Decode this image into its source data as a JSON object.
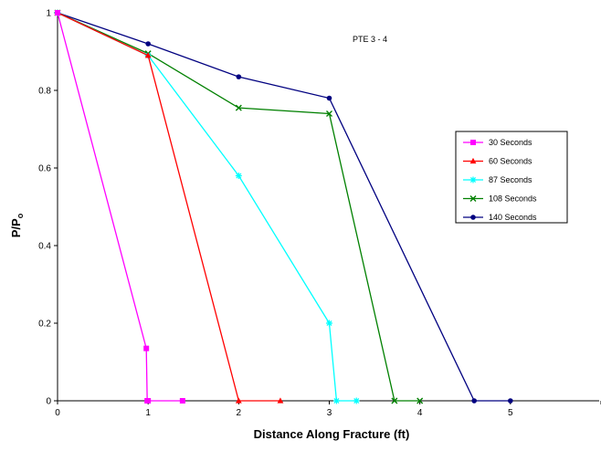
{
  "chart_data": {
    "type": "line",
    "annotation": "PTE 3 - 4",
    "xlabel": "Distance Along Fracture (ft)",
    "ylabel": "P/P",
    "ylabel_subscript": "o",
    "xlim": [
      0,
      6
    ],
    "ylim": [
      0,
      1
    ],
    "x_ticks": [
      0,
      1,
      2,
      3,
      4,
      5
    ],
    "y_ticks": [
      0,
      0.2,
      0.4,
      0.6,
      0.8,
      1
    ],
    "x_tick_labels": [
      "0",
      "1",
      "2",
      "3",
      "4",
      "5"
    ],
    "y_tick_labels": [
      "0",
      "0.2",
      "0.4",
      "0.6",
      "0.8",
      "1"
    ],
    "grid": false,
    "legend_position": "right",
    "series": [
      {
        "name": "30 Seconds",
        "color": "#ff00ff",
        "marker": "square",
        "x": [
          0,
          0.98,
          0.99,
          1.0,
          1.38
        ],
        "y": [
          1,
          0.135,
          0.0,
          0.0,
          0.0
        ]
      },
      {
        "name": "60 Seconds",
        "color": "#ff0000",
        "marker": "triangle",
        "x": [
          0,
          1.0,
          2.0,
          2.46
        ],
        "y": [
          1,
          0.89,
          0.0,
          0.0
        ]
      },
      {
        "name": "87 Seconds",
        "color": "#00ffff",
        "marker": "star",
        "x": [
          0,
          1.0,
          2.0,
          3.0,
          3.08,
          3.3
        ],
        "y": [
          1,
          0.89,
          0.58,
          0.2,
          0.0,
          0.0
        ]
      },
      {
        "name": "108 Seconds",
        "color": "#008000",
        "marker": "x",
        "x": [
          0,
          1.0,
          2.0,
          3.0,
          3.72,
          4.0
        ],
        "y": [
          1,
          0.895,
          0.755,
          0.74,
          0.0,
          0.0
        ]
      },
      {
        "name": "140 Seconds",
        "color": "#000080",
        "marker": "circle",
        "x": [
          0,
          1.0,
          2.0,
          3.0,
          4.6,
          5.0
        ],
        "y": [
          1,
          0.92,
          0.835,
          0.78,
          0.0,
          0.0
        ]
      }
    ]
  }
}
